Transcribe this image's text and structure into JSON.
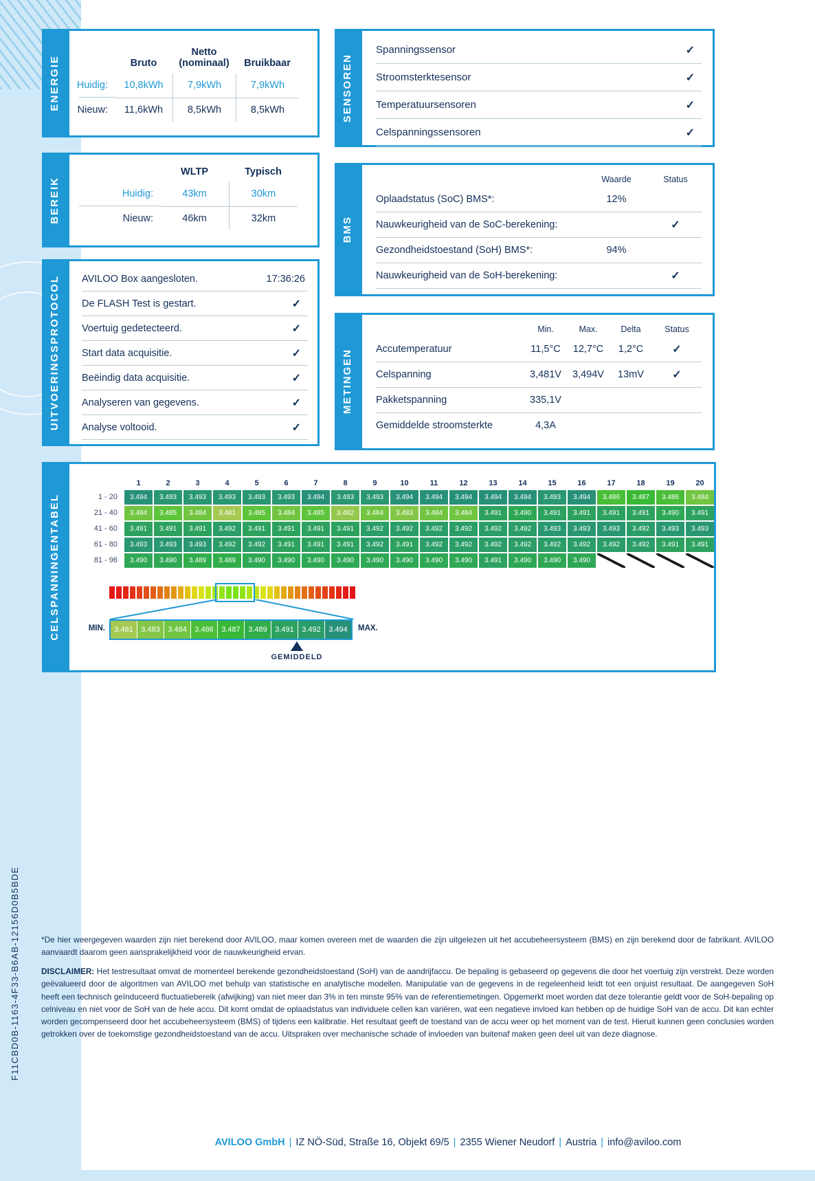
{
  "glyphs": {
    "check": "✓"
  },
  "colors": {
    "accent": "#1f99d6",
    "navy": "#14305a",
    "band": "#cfe9f8",
    "cell_min_green": "#a7c954",
    "cell_max_green": "#26917b",
    "scale_edge": "#d42020"
  },
  "energie": {
    "tab": "ENERGIE",
    "headers": {
      "bruto": "Bruto",
      "netto1": "Netto",
      "netto2": "(nominaal)",
      "bruikbaar": "Bruikbaar"
    },
    "rows": [
      {
        "label": "Huidig:",
        "v1": "10,8kWh",
        "v2": "7,9kWh",
        "v3": "7,9kWh"
      },
      {
        "label": "Nieuw:",
        "v1": "11,6kWh",
        "v2": "8,5kWh",
        "v3": "8,5kWh"
      }
    ]
  },
  "bereik": {
    "tab": "BEREIK",
    "headers": {
      "col1": "WLTP",
      "col2": "Typisch"
    },
    "rows": [
      {
        "label": "Huidig:",
        "v1": "43km",
        "v2": "30km"
      },
      {
        "label": "Nieuw:",
        "v1": "46km",
        "v2": "32km"
      }
    ]
  },
  "protocol": {
    "tab": "UITVOERINGSPROTOCOL",
    "rows": [
      {
        "label": "AVILOO Box aangesloten.",
        "time": "17:36:26"
      },
      {
        "label": "De FLASH Test is gestart.",
        "check": true
      },
      {
        "label": "Voertuig gedetecteerd.",
        "check": true
      },
      {
        "label": "Start data acquisitie.",
        "check": true
      },
      {
        "label": "Beëindig data acquisitie.",
        "check": true
      },
      {
        "label": "Analyseren van gegevens.",
        "check": true
      },
      {
        "label": "Analyse voltooid.",
        "check": true
      }
    ]
  },
  "sensoren": {
    "tab": "SENSOREN",
    "rows": [
      {
        "label": "Spanningssensor",
        "check": true
      },
      {
        "label": "Stroomsterktesensor",
        "check": true
      },
      {
        "label": "Temperatuursensoren",
        "check": true
      },
      {
        "label": "Celspanningssensoren",
        "check": true
      }
    ]
  },
  "bms": {
    "tab": "BMS",
    "headers": [
      "Waarde",
      "Status"
    ],
    "rows": [
      {
        "label": "Oplaadstatus (SoC) BMS*:",
        "waarde": "12%"
      },
      {
        "label": "Nauwkeurigheid van de SoC-berekening:",
        "check": true
      },
      {
        "label": "Gezondheidstoestand (SoH) BMS*:",
        "waarde": "94%"
      },
      {
        "label": "Nauwkeurigheid van de SoH-berekening:",
        "check": true
      }
    ]
  },
  "metingen": {
    "tab": "METINGEN",
    "headers": [
      "Min.",
      "Max.",
      "Delta",
      "Status"
    ],
    "rows": [
      {
        "label": "Accutemperatuur",
        "min": "11,5°C",
        "max": "12,7°C",
        "delta": "1,2°C",
        "check": true
      },
      {
        "label": "Celspanning",
        "min": "3,481V",
        "max": "3,494V",
        "delta": "13mV",
        "check": true
      },
      {
        "label": "Pakketspanning",
        "min": "335,1V"
      },
      {
        "label": "Gemiddelde stroomsterkte",
        "min": "4,3A"
      }
    ]
  },
  "celtabel": {
    "tab": "CELSPANNINGENTABEL",
    "columns": [
      "1",
      "2",
      "3",
      "4",
      "5",
      "6",
      "7",
      "8",
      "9",
      "10",
      "11",
      "12",
      "13",
      "14",
      "15",
      "16",
      "17",
      "18",
      "19",
      "20"
    ],
    "rows": [
      {
        "label": "1 - 20",
        "values": [
          "3.494",
          "3.493",
          "3.493",
          "3.493",
          "3.493",
          "3.493",
          "3.494",
          "3.493",
          "3.493",
          "3.494",
          "3.494",
          "3.494",
          "3.494",
          "3.494",
          "3.493",
          "3.494",
          "3.486",
          "3.487",
          "3.486",
          "3.484"
        ]
      },
      {
        "label": "21 - 40",
        "values": [
          "3.484",
          "3.485",
          "3.484",
          "3.481",
          "3.485",
          "3.484",
          "3.485",
          "3.482",
          "3.484",
          "3.483",
          "3.484",
          "3.484",
          "3.491",
          "3.490",
          "3.491",
          "3.491",
          "3.491",
          "3.491",
          "3.490",
          "3.491"
        ]
      },
      {
        "label": "41 - 60",
        "values": [
          "3.491",
          "3.491",
          "3.491",
          "3.492",
          "3.491",
          "3.491",
          "3.491",
          "3.491",
          "3.492",
          "3.492",
          "3.492",
          "3.492",
          "3.492",
          "3.492",
          "3.493",
          "3.493",
          "3.493",
          "3.492",
          "3.493",
          "3.493"
        ]
      },
      {
        "label": "61 - 80",
        "values": [
          "3.493",
          "3.493",
          "3.493",
          "3.492",
          "3.492",
          "3.491",
          "3.491",
          "3.491",
          "3.492",
          "3.491",
          "3.492",
          "3.492",
          "3.492",
          "3.492",
          "3.492",
          "3.492",
          "3.492",
          "3.492",
          "3.491",
          "3.491"
        ]
      },
      {
        "label": "81 - 96",
        "values": [
          "3.490",
          "3.490",
          "3.489",
          "3.489",
          "3.490",
          "3.490",
          "3.490",
          "3.490",
          "3.490",
          "3.490",
          "3.490",
          "3.490",
          "3.491",
          "3.490",
          "3.490",
          "3.490"
        ]
      }
    ],
    "value_range": {
      "min": 3.481,
      "max": 3.494
    },
    "scale": {
      "segments": 36,
      "min_label": "MIN.",
      "max_label": "MAX.",
      "cells": [
        "3.481",
        "3.483",
        "3.484",
        "3.486",
        "3.487",
        "3.489",
        "3.491",
        "3.492",
        "3.494"
      ],
      "avg_label": "GEMIDDELD"
    }
  },
  "vehicle_id": "F11CBD0B-1163-4F33-B6AB-12156D0B5BDE",
  "footnote": "*De hier weergegeven waarden zijn niet berekend door AVILOO, maar komen overeen met de waarden die zijn uitgelezen uit het accubeheersysteem (BMS) en zijn berekend door de fabrikant. AVILOO aanvaardt daarom geen aansprakelijkheid voor de nauwkeurigheid ervan.",
  "disclaimer": {
    "label": "DISCLAIMER:",
    "text": "Het testresultaat omvat de momenteel berekende gezondheidstoestand (SoH) van de aandrijfaccu. De bepaling is gebaseerd op gegevens die door het voertuig zijn verstrekt. Deze worden geëvalueerd door de algoritmen van AVILOO met behulp van statistische en analytische modellen. Manipulatie van de gegevens in de regeleenheid leidt tot een onjuist resultaat. De aangegeven SoH heeft een technisch geïnduceerd fluctuatiebereik (afwijking) van niet meer dan 3% in ten minste 95% van de referentiemetingen. Opgemerkt moet worden dat deze tolerantie geldt voor de SoH-bepaling op celniveau en niet voor de SoH van de hele accu. Dit komt omdat de oplaadstatus van individuele cellen kan variëren, wat een negatieve invloed kan hebben op de huidige SoH van de accu. Dit kan echter worden gecompenseerd door het accubeheersysteem (BMS) of tijdens een kalibratie. Het resultaat geeft de toestand van de accu weer op het moment van de test. Hieruit kunnen geen conclusies worden getrokken over de toekomstige gezondheidstoestand van de accu. Uitspraken over mechanische schade of invloeden van buitenaf maken geen deel uit van deze diagnose."
  },
  "footer": {
    "company": "AVILOO GmbH",
    "separator": "|",
    "items": [
      "IZ NÖ-Süd, Straße 16, Objekt 69/5",
      "2355 Wiener Neudorf",
      "Austria",
      "info@aviloo.com"
    ]
  }
}
